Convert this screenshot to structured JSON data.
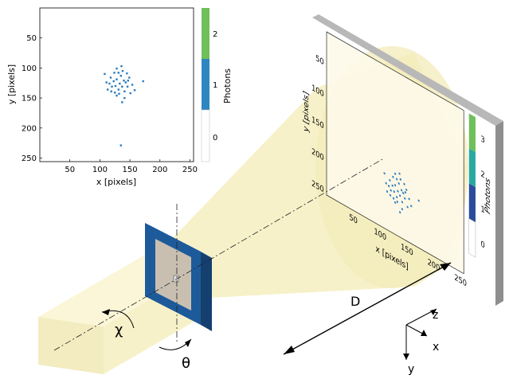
{
  "colors": {
    "beam_fill": "#f7f1c9",
    "cone_fill": "#f5eec0",
    "frame_blue": "#1d5a9a",
    "frame_dark": "#153f6f",
    "sample_fill": "#c9bfb0",
    "detector_gray": "#9a9a9a",
    "detector_face": "#ffffff",
    "point_blue": "#2a7bbf",
    "cb_green": "#6fbf5a",
    "cb_blue": "#2e86c1",
    "cb_teal": "#2aa9a0",
    "cb_navy": "#2b4c9b",
    "axis_color": "#000000"
  },
  "inset_plot": {
    "ylabel": "y [pixels]",
    "xlabel": "x [pixels]",
    "xticks": [
      "50",
      "100",
      "150",
      "200",
      "250"
    ],
    "yticks": [
      "50",
      "100",
      "150",
      "200",
      "250"
    ],
    "colorbar_label": "Photons",
    "colorbar_ticks": [
      "2",
      "1",
      "0"
    ],
    "points": [
      [
        128,
        119
      ],
      [
        135,
        113
      ],
      [
        140,
        121
      ],
      [
        128,
        101
      ],
      [
        138,
        105
      ],
      [
        131,
        108
      ],
      [
        118,
        116
      ],
      [
        123,
        122
      ],
      [
        143,
        124
      ],
      [
        146,
        131
      ],
      [
        141,
        139
      ],
      [
        131,
        136
      ],
      [
        126,
        130
      ],
      [
        120,
        131
      ],
      [
        113,
        136
      ],
      [
        108,
        110
      ],
      [
        116,
        126
      ],
      [
        149,
        116
      ],
      [
        154,
        128
      ],
      [
        158,
        137
      ],
      [
        137,
        157
      ],
      [
        132,
        143
      ],
      [
        125,
        141
      ],
      [
        151,
        142
      ],
      [
        133,
        126
      ],
      [
        137,
        131
      ],
      [
        124,
        108
      ],
      [
        111,
        124
      ],
      [
        172,
        122
      ],
      [
        145,
        109
      ],
      [
        128,
        146
      ],
      [
        147,
        121
      ],
      [
        135,
        229
      ],
      [
        141,
        150
      ],
      [
        119,
        139
      ],
      [
        136,
        97
      ]
    ]
  },
  "detector_plot": {
    "ylabel": "y [pixels]",
    "xlabel": "x [pixels]",
    "xticks": [
      "50",
      "100",
      "150",
      "200",
      "250"
    ],
    "yticks": [
      "50",
      "100",
      "150",
      "200",
      "250"
    ],
    "colorbar_label": "Photons",
    "colorbar_ticks": [
      "3",
      "2",
      "1",
      "0"
    ]
  },
  "labels": {
    "chi": "χ",
    "theta": "θ",
    "distance": "D",
    "axis_z": "z",
    "axis_x": "x",
    "axis_y": "y"
  }
}
